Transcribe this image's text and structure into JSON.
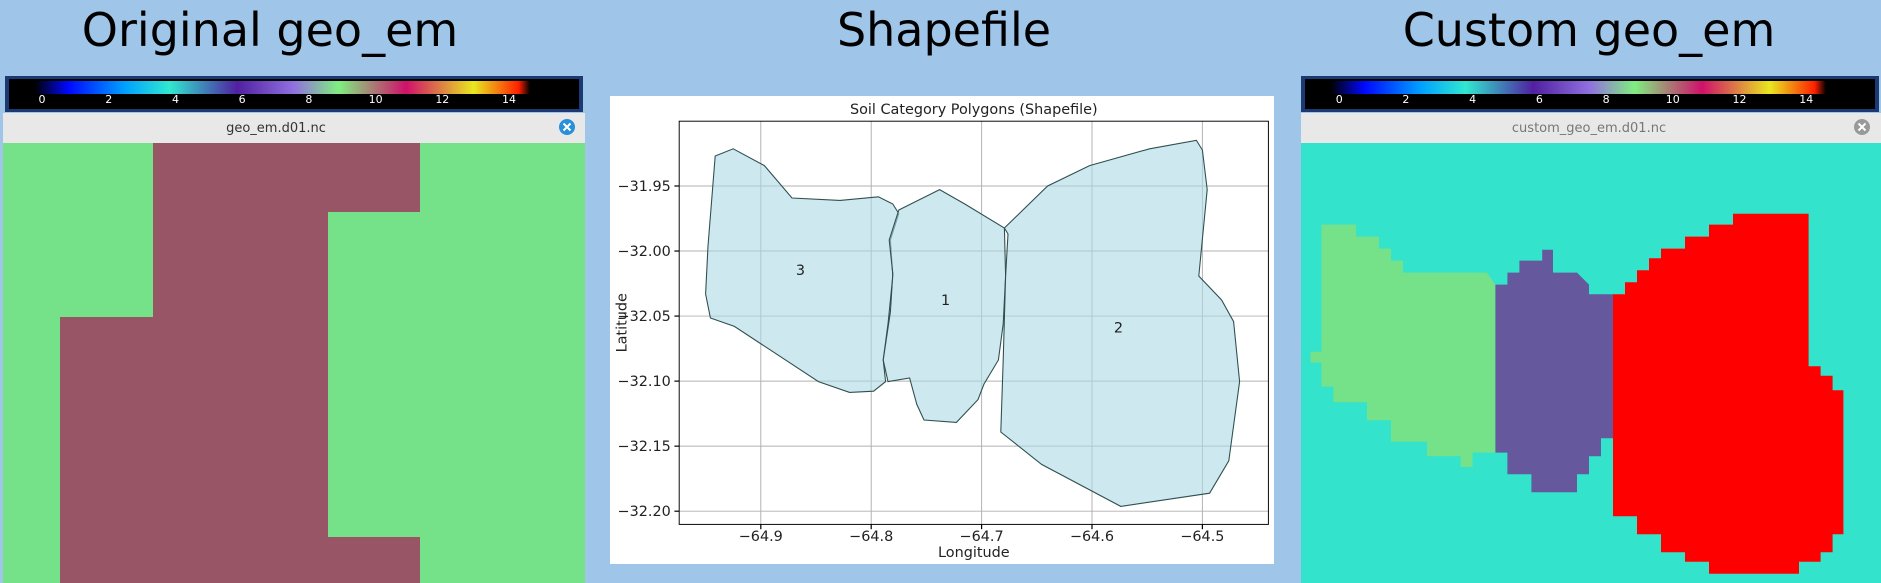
{
  "panels": [
    {
      "title": "Original geo_em",
      "colorbar_ticks": [
        0,
        2,
        4,
        6,
        8,
        10,
        12,
        14
      ],
      "window_title": "geo_em.d01.nc"
    },
    {
      "title": "Shapefile",
      "plot": {
        "title": "Soil Category Polygons (Shapefile)",
        "x_label": "Longitude",
        "y_label": "Latitude",
        "xticks": [
          "−64.9",
          "−64.8",
          "−64.7",
          "−64.6",
          "−64.5"
        ],
        "yticks": [
          "−31.95",
          "−32.00",
          "−32.05",
          "−32.10",
          "−32.15",
          "−32.20"
        ],
        "polygon_labels": [
          "3",
          "1",
          "2"
        ]
      }
    },
    {
      "title": "Custom geo_em",
      "colorbar_ticks": [
        0,
        2,
        4,
        6,
        8,
        10,
        12,
        14
      ],
      "window_title": "custom_geo_em.d01.nc"
    }
  ]
}
